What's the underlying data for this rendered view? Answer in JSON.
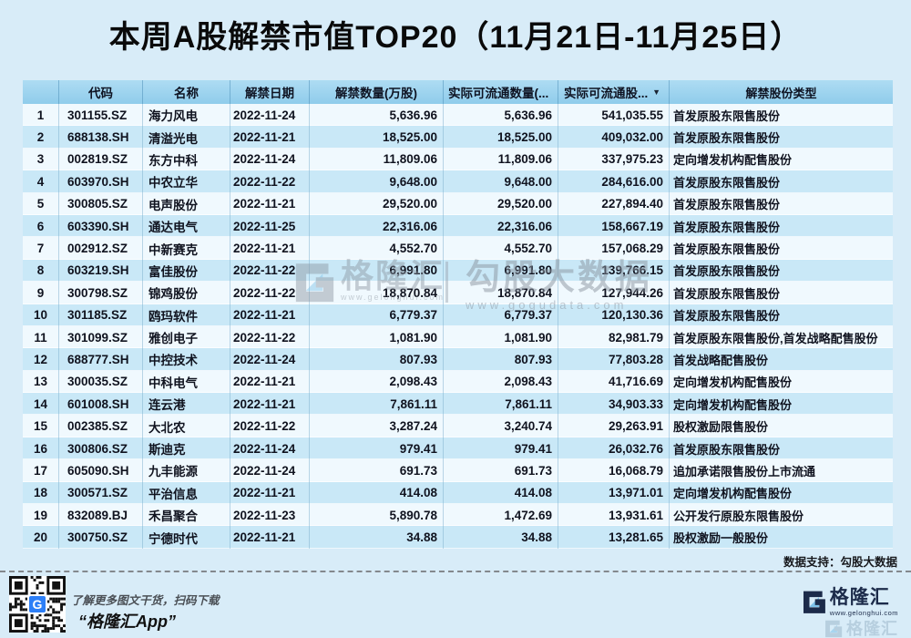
{
  "chart_data": {
    "type": "table",
    "title": "本周A股解禁市值TOP20（11月21日-11月25日）",
    "columns": [
      "",
      "代码",
      "名称",
      "解禁日期",
      "解禁数量(万股)",
      "实际可流通数量(...",
      "实际可流通股...",
      "解禁股份类型"
    ],
    "sort": {
      "column": "实际可流通股...",
      "direction": "desc",
      "icon": "▼"
    },
    "rows": [
      [
        "1",
        "301155.SZ",
        "海力风电",
        "2022-11-24",
        "5,636.96",
        "5,636.96",
        "541,035.55",
        "首发原股东限售股份"
      ],
      [
        "2",
        "688138.SH",
        "清溢光电",
        "2022-11-21",
        "18,525.00",
        "18,525.00",
        "409,032.00",
        "首发原股东限售股份"
      ],
      [
        "3",
        "002819.SZ",
        "东方中科",
        "2022-11-24",
        "11,809.06",
        "11,809.06",
        "337,975.23",
        "定向增发机构配售股份"
      ],
      [
        "4",
        "603970.SH",
        "中农立华",
        "2022-11-22",
        "9,648.00",
        "9,648.00",
        "284,616.00",
        "首发原股东限售股份"
      ],
      [
        "5",
        "300805.SZ",
        "电声股份",
        "2022-11-21",
        "29,520.00",
        "29,520.00",
        "227,894.40",
        "首发原股东限售股份"
      ],
      [
        "6",
        "603390.SH",
        "通达电气",
        "2022-11-25",
        "22,316.06",
        "22,316.06",
        "158,667.19",
        "首发原股东限售股份"
      ],
      [
        "7",
        "002912.SZ",
        "中新赛克",
        "2022-11-21",
        "4,552.70",
        "4,552.70",
        "157,068.29",
        "首发原股东限售股份"
      ],
      [
        "8",
        "603219.SH",
        "富佳股份",
        "2022-11-22",
        "6,991.80",
        "6,991.80",
        "139,766.15",
        "首发原股东限售股份"
      ],
      [
        "9",
        "300798.SZ",
        "锦鸡股份",
        "2022-11-22",
        "18,870.84",
        "18,870.84",
        "127,944.26",
        "首发原股东限售股份"
      ],
      [
        "10",
        "301185.SZ",
        "鸥玛软件",
        "2022-11-21",
        "6,779.37",
        "6,779.37",
        "120,130.36",
        "首发原股东限售股份"
      ],
      [
        "11",
        "301099.SZ",
        "雅创电子",
        "2022-11-22",
        "1,081.90",
        "1,081.90",
        "82,981.79",
        "首发原股东限售股份,首发战略配售股份"
      ],
      [
        "12",
        "688777.SH",
        "中控技术",
        "2022-11-24",
        "807.93",
        "807.93",
        "77,803.28",
        "首发战略配售股份"
      ],
      [
        "13",
        "300035.SZ",
        "中科电气",
        "2022-11-21",
        "2,098.43",
        "2,098.43",
        "41,716.69",
        "定向增发机构配售股份"
      ],
      [
        "14",
        "601008.SH",
        "连云港",
        "2022-11-21",
        "7,861.11",
        "7,861.11",
        "34,903.33",
        "定向增发机构配售股份"
      ],
      [
        "15",
        "002385.SZ",
        "大北农",
        "2022-11-22",
        "3,287.24",
        "3,240.74",
        "29,263.91",
        "股权激励限售股份"
      ],
      [
        "16",
        "300806.SZ",
        "斯迪克",
        "2022-11-24",
        "979.41",
        "979.41",
        "26,032.76",
        "首发原股东限售股份"
      ],
      [
        "17",
        "605090.SH",
        "九丰能源",
        "2022-11-24",
        "691.73",
        "691.73",
        "16,068.79",
        "追加承诺限售股份上市流通"
      ],
      [
        "18",
        "300571.SZ",
        "平治信息",
        "2022-11-21",
        "414.08",
        "414.08",
        "13,971.01",
        "定向增发机构配售股份"
      ],
      [
        "19",
        "832089.BJ",
        "禾昌聚合",
        "2022-11-23",
        "5,890.78",
        "1,472.69",
        "13,931.61",
        "公开发行原股东限售股份"
      ],
      [
        "20",
        "300750.SZ",
        "宁德时代",
        "2022-11-21",
        "34.88",
        "34.88",
        "13,281.65",
        "股权激励一般股份"
      ]
    ]
  },
  "watermarks": {
    "gelonghui_brand": "格隆汇",
    "gelonghui_url": "www.gelonghui.com",
    "gogu_brand": "勾股大数据",
    "gogu_url": "www.gogudata.com"
  },
  "footer": {
    "data_support": "数据支持：勾股大数据",
    "qr_caption_line1": "了解更多图文干货，扫码下载",
    "qr_caption_line2": "“格隆汇App”",
    "qr_center_letter": "G",
    "logo_brand": "格隆汇",
    "logo_url": "www.gelonghui.com",
    "logo_wm_brand": "格隆汇"
  },
  "colors": {
    "page_bg": "#d8ecf8",
    "header_top": "#aedcf3",
    "header_bottom": "#8fcceb",
    "row_odd": "#f0f9fe",
    "row_even": "#c9e8f7",
    "text": "#10131f",
    "brand_navy": "#1c2b4a",
    "brand_sky": "#7fc3ea",
    "qr_blue": "#2d7ff7"
  }
}
